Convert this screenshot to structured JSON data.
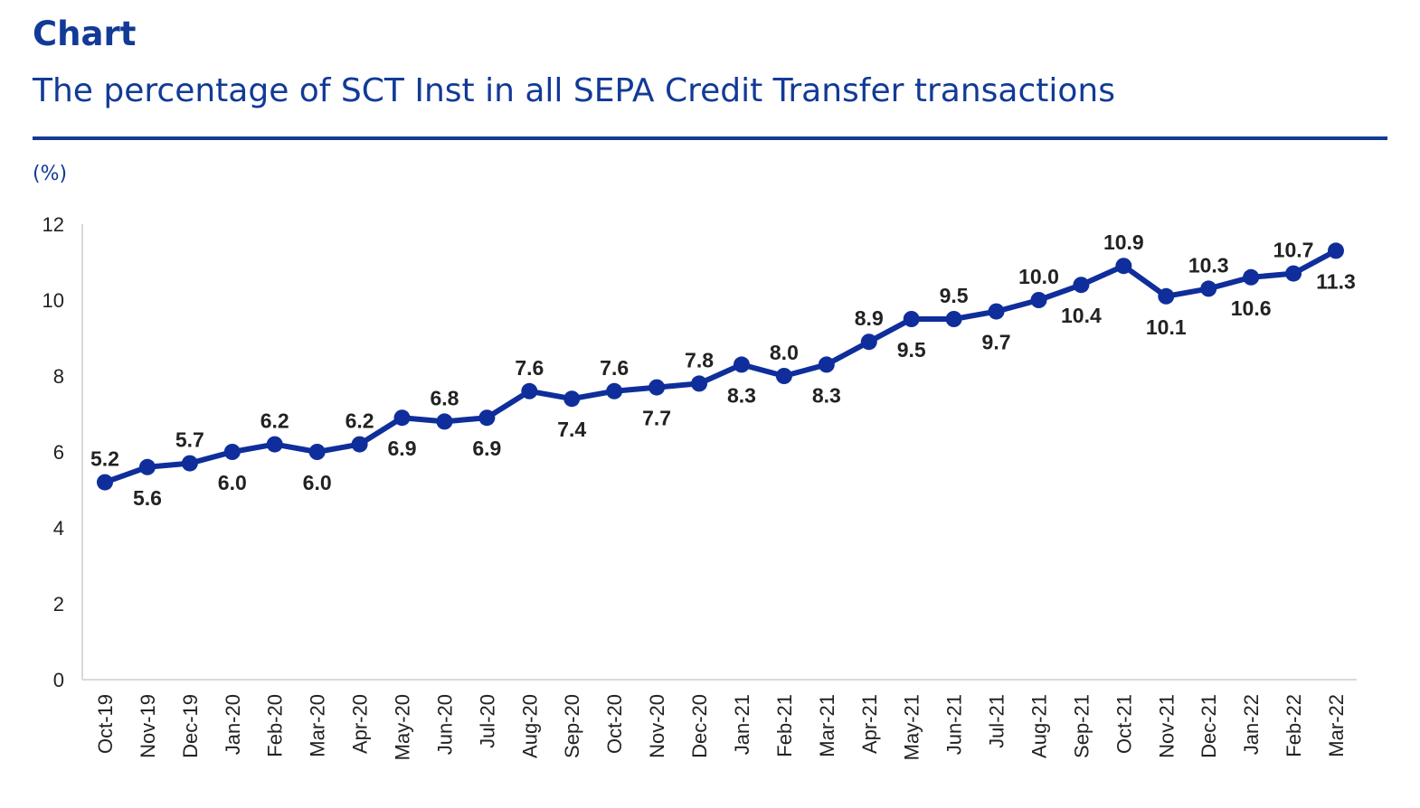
{
  "header": {
    "label": "Chart",
    "title": "The percentage of SCT Inst in all SEPA Credit Transfer transactions"
  },
  "colors": {
    "brand": "#123a96",
    "series": "#0f2e9b",
    "axis": "#d9d9d9"
  },
  "chart_data": {
    "type": "line",
    "title": "The percentage of SCT Inst in all SEPA Credit Transfer transactions",
    "ylabel": "(%)",
    "xlabel": "",
    "ylim": [
      0,
      12
    ],
    "yticks": [
      0,
      2,
      4,
      6,
      8,
      10,
      12
    ],
    "grid": false,
    "legend": "none",
    "categories": [
      "Oct-19",
      "Nov-19",
      "Dec-19",
      "Jan-20",
      "Feb-20",
      "Mar-20",
      "Apr-20",
      "May-20",
      "Jun-20",
      "Jul-20",
      "Aug-20",
      "Sep-20",
      "Oct-20",
      "Nov-20",
      "Dec-20",
      "Jan-21",
      "Feb-21",
      "Mar-21",
      "Apr-21",
      "May-21",
      "Jun-21",
      "Jul-21",
      "Aug-21",
      "Sep-21",
      "Oct-21",
      "Nov-21",
      "Dec-21",
      "Jan-22",
      "Feb-22",
      "Mar-22"
    ],
    "series": [
      {
        "values": [
          5.2,
          5.6,
          5.7,
          6.0,
          6.2,
          6.0,
          6.2,
          6.9,
          6.8,
          6.9,
          7.6,
          7.4,
          7.6,
          7.7,
          7.8,
          8.3,
          8.0,
          8.3,
          8.9,
          9.5,
          9.5,
          9.7,
          10.0,
          10.4,
          10.9,
          10.1,
          10.3,
          10.6,
          10.7,
          11.3
        ],
        "data_labels": [
          "5.2",
          "5.6",
          "5.7",
          "6.0",
          "6.2",
          "6.0",
          "6.2",
          "6.9",
          "6.8",
          "6.9",
          "7.6",
          "7.4",
          "7.6",
          "7.7",
          "7.8",
          "8.3",
          "8.0",
          "8.3",
          "8.9",
          "9.5",
          "9.5",
          "9.7",
          "10.0",
          "10.4",
          "10.9",
          "10.1",
          "10.3",
          "10.6",
          "10.7",
          "11.3"
        ],
        "label_position": [
          "above",
          "below",
          "above",
          "below",
          "above",
          "below",
          "above",
          "below",
          "above",
          "below",
          "above",
          "below",
          "above",
          "below",
          "above",
          "below",
          "above",
          "below",
          "above",
          "below",
          "above",
          "below",
          "above",
          "below",
          "above",
          "below",
          "above",
          "below",
          "above",
          "below"
        ]
      }
    ]
  }
}
